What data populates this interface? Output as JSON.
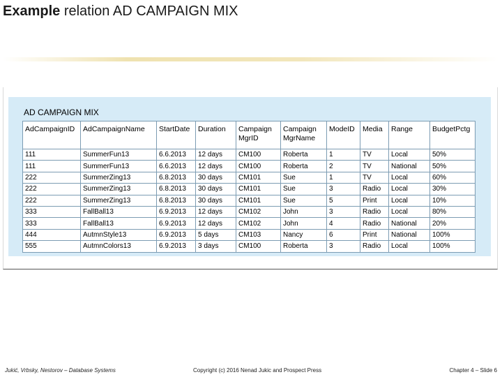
{
  "slide": {
    "title_bold": "Example",
    "title_rest": " relation AD CAMPAIGN MIX"
  },
  "table": {
    "caption": "AD CAMPAIGN MIX",
    "columns": [
      "AdCampaignID",
      "AdCampaignName",
      "StartDate",
      "Duration",
      "Campaign MgrID",
      "Campaign MgrName",
      "ModeID",
      "Media",
      "Range",
      "BudgetPctg"
    ],
    "rows": [
      [
        "111",
        "SummerFun13",
        "6.6.2013",
        "12 days",
        "CM100",
        "Roberta",
        "1",
        "TV",
        "Local",
        "50%"
      ],
      [
        "111",
        "SummerFun13",
        "6.6.2013",
        "12 days",
        "CM100",
        "Roberta",
        "2",
        "TV",
        "National",
        "50%"
      ],
      [
        "222",
        "SummerZing13",
        "6.8.2013",
        "30 days",
        "CM101",
        "Sue",
        "1",
        "TV",
        "Local",
        "60%"
      ],
      [
        "222",
        "SummerZing13",
        "6.8.2013",
        "30 days",
        "CM101",
        "Sue",
        "3",
        "Radio",
        "Local",
        "30%"
      ],
      [
        "222",
        "SummerZing13",
        "6.8.2013",
        "30 days",
        "CM101",
        "Sue",
        "5",
        "Print",
        "Local",
        "10%"
      ],
      [
        "333",
        "FallBall13",
        "6.9.2013",
        "12 days",
        "CM102",
        "John",
        "3",
        "Radio",
        "Local",
        "80%"
      ],
      [
        "333",
        "FallBall13",
        "6.9.2013",
        "12 days",
        "CM102",
        "John",
        "4",
        "Radio",
        "National",
        "20%"
      ],
      [
        "444",
        "AutmnStyle13",
        "6.9.2013",
        "5 days",
        "CM103",
        "Nancy",
        "6",
        "Print",
        "National",
        "100%"
      ],
      [
        "555",
        "AutmnColors13",
        "6.9.2013",
        "3 days",
        "CM100",
        "Roberta",
        "3",
        "Radio",
        "Local",
        "100%"
      ]
    ]
  },
  "footer": {
    "left": "Jukić, Vrbsky, Nestorov – Database Systems",
    "center": "Copyright (c) 2016 Nenad Jukic and Prospect Press",
    "right": "Chapter 4 – Slide 6"
  }
}
